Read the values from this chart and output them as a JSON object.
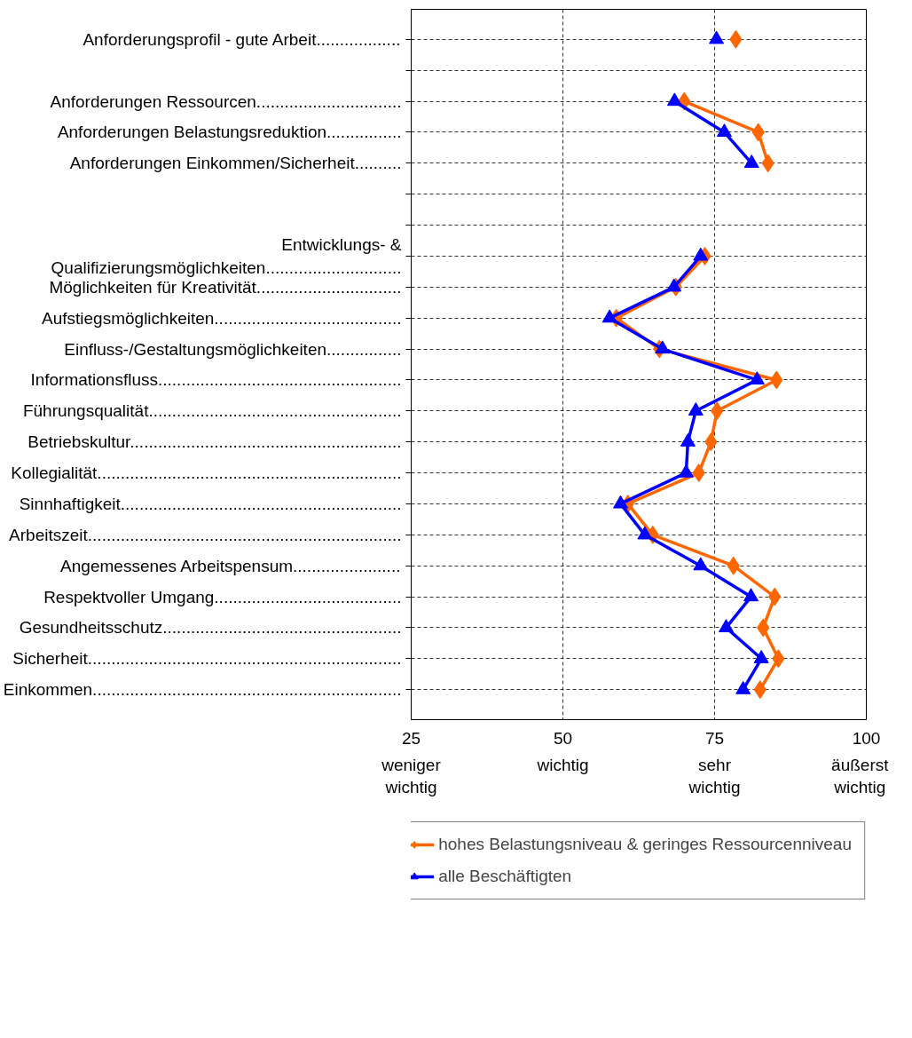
{
  "chart_data": {
    "type": "line",
    "orientation": "horizontal",
    "categories": [
      "Anforderungsprofil - gute Arbeit..................",
      null,
      "Anforderungen Ressourcen...............................",
      "Anforderungen Belastungsreduktion................",
      "Anforderungen Einkommen/Sicherheit..........",
      null,
      null,
      "Entwicklungs- &\nQualifizierungsmöglichkeiten.............................",
      "Möglichkeiten für Kreativität...............................",
      "Aufstiegsmöglichkeiten........................................",
      "Einfluss-/Gestaltungsmöglichkeiten................",
      "Informationsfluss....................................................",
      "Führungsqualität......................................................",
      "Betriebskultur..........................................................",
      "Kollegialität.................................................................",
      "Sinnhaftigkeit............................................................",
      "Arbeitszeit...................................................................",
      "Angemessenes Arbeitspensum.......................",
      "Respektvoller Umgang........................................",
      "Gesundheitsschutz...................................................",
      "Sicherheit...................................................................",
      "Einkommen.................................................................."
    ],
    "series": [
      {
        "name": "hohes Belastungsniveau & geringes Ressourcenniveau",
        "color": "#ff6600",
        "marker": "diamond",
        "values": [
          78.5,
          null,
          70,
          82.2,
          83.8,
          null,
          null,
          73.4,
          68.6,
          58.8,
          65.9,
          85.2,
          75.4,
          74.4,
          72.4,
          60.7,
          64.8,
          78.1,
          84.9,
          83,
          85.5,
          82.5
        ]
      },
      {
        "name": "alle Beschäftigten",
        "color": "#0000ff",
        "marker": "triangle",
        "values": [
          75.3,
          null,
          68.4,
          76.6,
          81.1,
          null,
          null,
          72.7,
          68.3,
          57.7,
          66.4,
          82,
          71.9,
          70.6,
          70.3,
          59.5,
          63.5,
          72.7,
          81,
          76.9,
          82.7,
          79.7
        ]
      }
    ],
    "xlim": [
      25,
      100
    ],
    "xticks": [
      25,
      50,
      75,
      100
    ],
    "annotations": [
      "weniger\nwichtig",
      "wichtig",
      "sehr\nwichtig",
      "äußerst\nwichtig"
    ],
    "grid": true,
    "line_style": "solid",
    "legend": "bottom"
  }
}
